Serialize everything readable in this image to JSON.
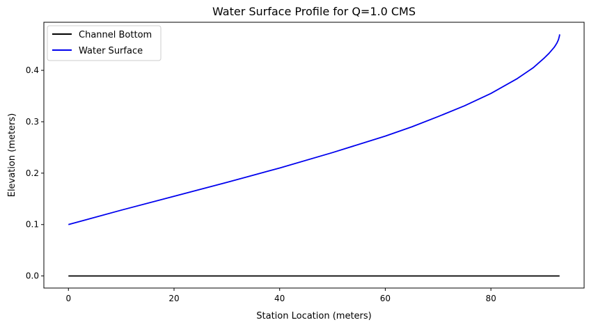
{
  "chart_data": {
    "type": "line",
    "title": "Water Surface Profile for Q=1.0 CMS",
    "xlabel": "Station Location (meters)",
    "ylabel": "Elevation (meters)",
    "xlim": [
      -4.65,
      97.65
    ],
    "ylim": [
      -0.0235,
      0.4935
    ],
    "xticks": [
      0,
      20,
      40,
      60,
      80
    ],
    "xtick_labels": [
      "0",
      "20",
      "40",
      "60",
      "80"
    ],
    "yticks": [
      0.0,
      0.1,
      0.2,
      0.3,
      0.4
    ],
    "ytick_labels": [
      "0.0",
      "0.1",
      "0.2",
      "0.3",
      "0.4"
    ],
    "grid": false,
    "legend_position": "upper-left",
    "series": [
      {
        "name": "Channel Bottom",
        "color": "#000000",
        "x": [
          0,
          93
        ],
        "y": [
          0.0,
          0.0
        ]
      },
      {
        "name": "Water Surface",
        "color": "#0000ee",
        "x": [
          0,
          10,
          20,
          30,
          40,
          50,
          60,
          65,
          70,
          75,
          80,
          85,
          88,
          90,
          91,
          92,
          92.5,
          92.8,
          93,
          93
        ],
        "y": [
          0.1,
          0.128,
          0.155,
          0.182,
          0.21,
          0.24,
          0.272,
          0.29,
          0.31,
          0.331,
          0.355,
          0.384,
          0.405,
          0.423,
          0.433,
          0.445,
          0.453,
          0.46,
          0.468,
          0.47
        ]
      }
    ]
  }
}
